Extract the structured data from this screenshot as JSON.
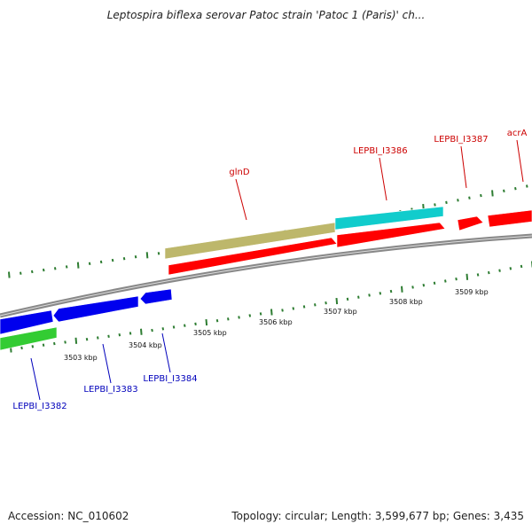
{
  "title": "Leptospira biflexa serovar Patoc strain 'Patoc 1 (Paris)' ch...",
  "footer": {
    "accession": "Accession: NC_010602",
    "summary": "Topology: circular; Length: 3,599,677 bp; Genes: 3,435"
  },
  "colors": {
    "backbone": "#888888",
    "tick": "#2e7d32",
    "forward_label": "#cc0000",
    "reverse_label": "#0000bb",
    "gene_red": "#ff0000",
    "gene_blue": "#0000ee",
    "gene_green": "#33cc33",
    "gene_olive": "#bdb76b",
    "gene_cyan": "#11cccc"
  },
  "scale_labels": [
    "3503 kbp",
    "3504 kbp",
    "3505 kbp",
    "3506 kbp",
    "3507 kbp",
    "3508 kbp",
    "3509 kbp"
  ],
  "gene_labels": [
    {
      "text": "glnD",
      "strand": "forward"
    },
    {
      "text": "LEPBI_I3386",
      "strand": "forward"
    },
    {
      "text": "LEPBI_I3387",
      "strand": "forward"
    },
    {
      "text": "acrA",
      "strand": "forward"
    },
    {
      "text": "LEPBI_I3382",
      "strand": "reverse"
    },
    {
      "text": "LEPBI_I3383",
      "strand": "reverse"
    },
    {
      "text": "LEPBI_I3384",
      "strand": "reverse"
    }
  ],
  "features": [
    {
      "name": "glnD-cds",
      "color": "gene_red",
      "strand": "forward"
    },
    {
      "name": "glnD-gene",
      "color": "gene_olive",
      "strand": "forward"
    },
    {
      "name": "LEPBI_I3386-cds",
      "color": "gene_red",
      "strand": "forward"
    },
    {
      "name": "LEPBI_I3386-gene",
      "color": "gene_cyan",
      "strand": "forward"
    },
    {
      "name": "LEPBI_I3387-cds",
      "color": "gene_red",
      "strand": "forward"
    },
    {
      "name": "acrA-cds",
      "color": "gene_red",
      "strand": "forward"
    },
    {
      "name": "LEPBI_I3382-gene",
      "color": "gene_green",
      "strand": "reverse"
    },
    {
      "name": "LEPBI_I3382-cds",
      "color": "gene_blue",
      "strand": "reverse"
    },
    {
      "name": "LEPBI_I3383-cds",
      "color": "gene_blue",
      "strand": "reverse"
    },
    {
      "name": "LEPBI_I3384-cds",
      "color": "gene_blue",
      "strand": "reverse"
    }
  ]
}
